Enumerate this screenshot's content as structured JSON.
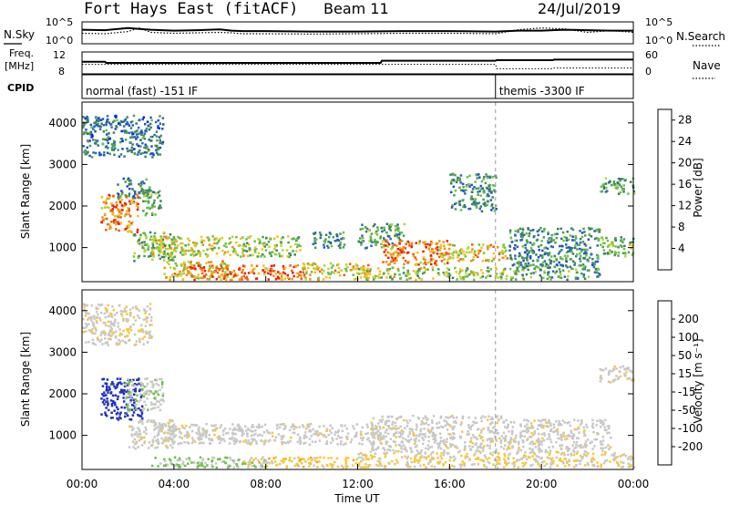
{
  "header": {
    "title": "Fort Hays East (fitACF)",
    "beam": "Beam 11",
    "date": "24/Jul/2019"
  },
  "left_labels": {
    "nsky": "N.Sky",
    "freq_top": "Freq.",
    "freq_unit": "[MHz]",
    "cpid": "CPID"
  },
  "right_labels": {
    "nsearch": "N.Search",
    "nave": "Nave"
  },
  "strip_ticks": {
    "noise_left": [
      "10^5",
      "10^0"
    ],
    "noise_right": [
      "10^5",
      "10^0"
    ],
    "freq_left": [
      "12",
      "8"
    ],
    "nave_right": [
      "60",
      "0"
    ]
  },
  "cpid_labels": [
    {
      "text": "normal (fast) -151 IF",
      "start_hour": 0.0
    },
    {
      "text": "themis -3300 IF",
      "start_hour": 18.0
    }
  ],
  "colors": {
    "power": [
      "#0a20e6",
      "#1e50c8",
      "#2e6aa8",
      "#3a8060",
      "#4ca050",
      "#6cc04a",
      "#b8d23a",
      "#f2c020",
      "#f58c10",
      "#f05a10",
      "#e62010"
    ],
    "velocity": [
      "#e61010",
      "#f04010",
      "#f57a10",
      "#f5a020",
      "#f5c840",
      "#c8c8c8",
      "#c8c8c8",
      "#6cc04a",
      "#3a9050",
      "#3050a0",
      "#2030c0"
    ]
  },
  "chart_data": [
    {
      "type": "line",
      "panel": "noise",
      "x": [
        0,
        1,
        2,
        2.5,
        3,
        4,
        5,
        6,
        6.5,
        7,
        8,
        10,
        12,
        14,
        16,
        18,
        19,
        20,
        21,
        22,
        23,
        24
      ],
      "series": [
        {
          "name": "N.Sky",
          "values": [
            3.2,
            3.1,
            3.6,
            3.4,
            3.2,
            3.0,
            3.1,
            3.3,
            3.0,
            2.9,
            2.9,
            2.8,
            2.8,
            2.9,
            2.9,
            2.8,
            3.0,
            3.0,
            3.2,
            3.1,
            3.0,
            3.0
          ]
        },
        {
          "name": "N.Search",
          "values": [
            2.4,
            2.3,
            2.8,
            3.6,
            2.6,
            2.4,
            2.5,
            2.6,
            2.5,
            2.3,
            2.3,
            2.2,
            2.3,
            2.4,
            2.4,
            2.3,
            3.2,
            3.6,
            3.4,
            2.6,
            3.0,
            2.6
          ]
        }
      ],
      "ylim": [
        0,
        5
      ],
      "yscale": "log"
    },
    {
      "type": "line",
      "panel": "frequency",
      "x": [
        0,
        1,
        1.05,
        13,
        13.05,
        18,
        18.05,
        20.5,
        20.55,
        24
      ],
      "series": [
        {
          "name": "Freq.",
          "values": [
            10.2,
            10.2,
            10.0,
            10.0,
            10.4,
            10.4,
            10.5,
            10.5,
            10.6,
            10.6
          ]
        },
        {
          "name": "Nave",
          "values": [
            26,
            26,
            26,
            26,
            26,
            26,
            14,
            14,
            16,
            16
          ]
        }
      ],
      "ylim": [
        8,
        12
      ]
    },
    {
      "type": "heatmap",
      "panel": "power",
      "xlabel": "",
      "ylabel": "Slant Range [km]",
      "xlim": [
        0,
        24
      ],
      "ylim": [
        180,
        4500
      ],
      "yticks": [
        "1000",
        "2000",
        "3000",
        "4000"
      ],
      "colorbar": {
        "label": "Power [dB]",
        "ticks": [
          "4",
          "8",
          "12",
          "16",
          "20",
          "24",
          "28"
        ],
        "range": [
          0,
          30
        ]
      },
      "blobs": [
        {
          "x": [
            0.0,
            3.5
          ],
          "y": [
            3200,
            4200
          ],
          "v": 8
        },
        {
          "x": [
            0.8,
            2.4
          ],
          "y": [
            1400,
            2300
          ],
          "v": 24
        },
        {
          "x": [
            1.5,
            3.0
          ],
          "y": [
            2200,
            2700
          ],
          "v": 9
        },
        {
          "x": [
            2.6,
            3.4
          ],
          "y": [
            1800,
            2400
          ],
          "v": 12
        },
        {
          "x": [
            2.2,
            4.0
          ],
          "y": [
            700,
            1400
          ],
          "v": 14
        },
        {
          "x": [
            3.0,
            7.0
          ],
          "y": [
            800,
            1300
          ],
          "v": 18
        },
        {
          "x": [
            3.5,
            6.5
          ],
          "y": [
            250,
            700
          ],
          "v": 20
        },
        {
          "x": [
            4.5,
            9.5
          ],
          "y": [
            250,
            600
          ],
          "v": 26
        },
        {
          "x": [
            7.0,
            9.5
          ],
          "y": [
            800,
            1300
          ],
          "v": 15
        },
        {
          "x": [
            9.5,
            12.5
          ],
          "y": [
            250,
            650
          ],
          "v": 20
        },
        {
          "x": [
            10.0,
            11.5
          ],
          "y": [
            1000,
            1400
          ],
          "v": 10
        },
        {
          "x": [
            12.0,
            14.0
          ],
          "y": [
            1000,
            1600
          ],
          "v": 12
        },
        {
          "x": [
            13.0,
            16.0
          ],
          "y": [
            600,
            1200
          ],
          "v": 24
        },
        {
          "x": [
            15.5,
            18.5
          ],
          "y": [
            700,
            1100
          ],
          "v": 20
        },
        {
          "x": [
            12.0,
            18.5
          ],
          "y": [
            250,
            550
          ],
          "v": 16
        },
        {
          "x": [
            16.0,
            18.0
          ],
          "y": [
            1900,
            2800
          ],
          "v": 10
        },
        {
          "x": [
            18.5,
            22.5
          ],
          "y": [
            600,
            1500
          ],
          "v": 10
        },
        {
          "x": [
            18.5,
            22.5
          ],
          "y": [
            250,
            600
          ],
          "v": 12
        },
        {
          "x": [
            22.5,
            24.0
          ],
          "y": [
            800,
            1300
          ],
          "v": 14
        },
        {
          "x": [
            22.5,
            24.0
          ],
          "y": [
            2300,
            2700
          ],
          "v": 12
        }
      ]
    },
    {
      "type": "heatmap",
      "panel": "velocity",
      "xlabel": "Time UT",
      "ylabel": "Slant Range [km]",
      "xlim": [
        0,
        24
      ],
      "ylim": [
        180,
        4500
      ],
      "xticks": [
        "00:00",
        "04:00",
        "08:00",
        "12:00",
        "16:00",
        "20:00",
        "00:00"
      ],
      "yticks": [
        "1000",
        "2000",
        "3000",
        "4000"
      ],
      "colorbar": {
        "label": "Velocity [m s⁻¹]",
        "ticks": [
          "200",
          "100",
          "50",
          "15",
          "-15",
          "-50",
          "-100",
          "-200"
        ],
        "range": [
          -250,
          250
        ]
      },
      "blobs": [
        {
          "x": [
            0.0,
            3.0
          ],
          "y": [
            3200,
            4200
          ],
          "v": -10
        },
        {
          "x": [
            0.8,
            2.6
          ],
          "y": [
            1400,
            2400
          ],
          "v": 230
        },
        {
          "x": [
            1.8,
            3.5
          ],
          "y": [
            1600,
            2400
          ],
          "v": 60
        },
        {
          "x": [
            2.0,
            4.0
          ],
          "y": [
            700,
            1400
          ],
          "v": 0
        },
        {
          "x": [
            3.0,
            13.0
          ],
          "y": [
            800,
            1300
          ],
          "v": 0
        },
        {
          "x": [
            3.0,
            8.0
          ],
          "y": [
            250,
            500
          ],
          "v": 70
        },
        {
          "x": [
            7.0,
            12.0
          ],
          "y": [
            250,
            500
          ],
          "v": -45
        },
        {
          "x": [
            12.0,
            18.5
          ],
          "y": [
            250,
            600
          ],
          "v": -30
        },
        {
          "x": [
            12.5,
            18.5
          ],
          "y": [
            600,
            1500
          ],
          "v": 0
        },
        {
          "x": [
            18.5,
            23.0
          ],
          "y": [
            600,
            1400
          ],
          "v": 0
        },
        {
          "x": [
            18.5,
            24.0
          ],
          "y": [
            250,
            600
          ],
          "v": -20
        },
        {
          "x": [
            22.5,
            24.0
          ],
          "y": [
            2300,
            2700
          ],
          "v": 0
        }
      ]
    }
  ]
}
